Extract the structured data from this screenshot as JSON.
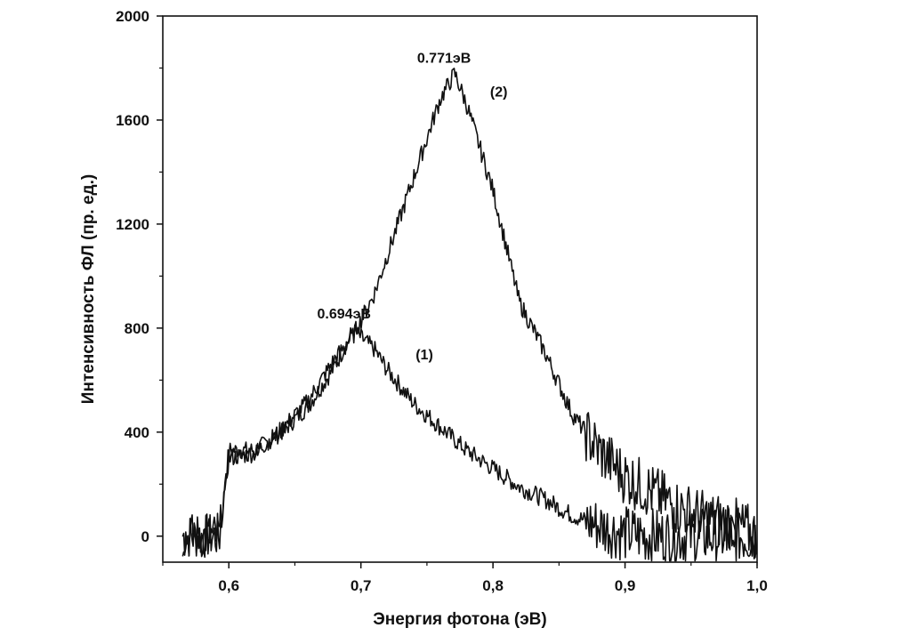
{
  "chart_data": {
    "type": "line",
    "xlabel": "Энергия фотона (эВ)",
    "ylabel": "Интенсивность ФЛ (пр. ед.)",
    "xlim": [
      0.55,
      1.0
    ],
    "ylim": [
      -100,
      2000
    ],
    "xticks": [
      0.6,
      0.7,
      0.8,
      0.9,
      1.0
    ],
    "xtick_labels": [
      "0,6",
      "0,7",
      "0,8",
      "0,9",
      "1,0"
    ],
    "yticks": [
      0,
      400,
      800,
      1200,
      1600,
      2000
    ],
    "ytick_labels": [
      "0",
      "400",
      "800",
      "1200",
      "1600",
      "2000"
    ],
    "grid": false,
    "line_color": "#111111",
    "series": [
      {
        "name": "(1)",
        "x": [
          0.565,
          0.58,
          0.593,
          0.6,
          0.62,
          0.64,
          0.66,
          0.68,
          0.694,
          0.71,
          0.72,
          0.74,
          0.76,
          0.78,
          0.8,
          0.82,
          0.84,
          0.86,
          0.88,
          0.9,
          0.92,
          0.94,
          0.96,
          0.98,
          1.0
        ],
        "values": [
          0,
          0,
          0,
          330,
          330,
          400,
          500,
          650,
          790,
          720,
          640,
          510,
          420,
          330,
          260,
          190,
          140,
          80,
          40,
          10,
          0,
          0,
          0,
          0,
          0
        ]
      },
      {
        "name": "(2)",
        "x": [
          0.565,
          0.58,
          0.593,
          0.6,
          0.62,
          0.64,
          0.66,
          0.68,
          0.694,
          0.71,
          0.72,
          0.74,
          0.76,
          0.771,
          0.78,
          0.8,
          0.82,
          0.84,
          0.86,
          0.88,
          0.9,
          0.92,
          0.94,
          0.96,
          0.98,
          1.0
        ],
        "values": [
          0,
          0,
          0,
          300,
          320,
          410,
          520,
          680,
          770,
          930,
          1080,
          1380,
          1680,
          1780,
          1660,
          1330,
          900,
          700,
          470,
          330,
          230,
          170,
          110,
          70,
          50,
          0
        ]
      }
    ],
    "annotations": [
      {
        "text": "0.694эВ",
        "x": 0.694,
        "y": 790
      },
      {
        "text": "0.771эВ",
        "x": 0.771,
        "y": 1780
      },
      {
        "text": "(1)",
        "x": 0.728,
        "y": 680
      },
      {
        "text": "(2)",
        "x": 0.783,
        "y": 1690
      }
    ]
  }
}
